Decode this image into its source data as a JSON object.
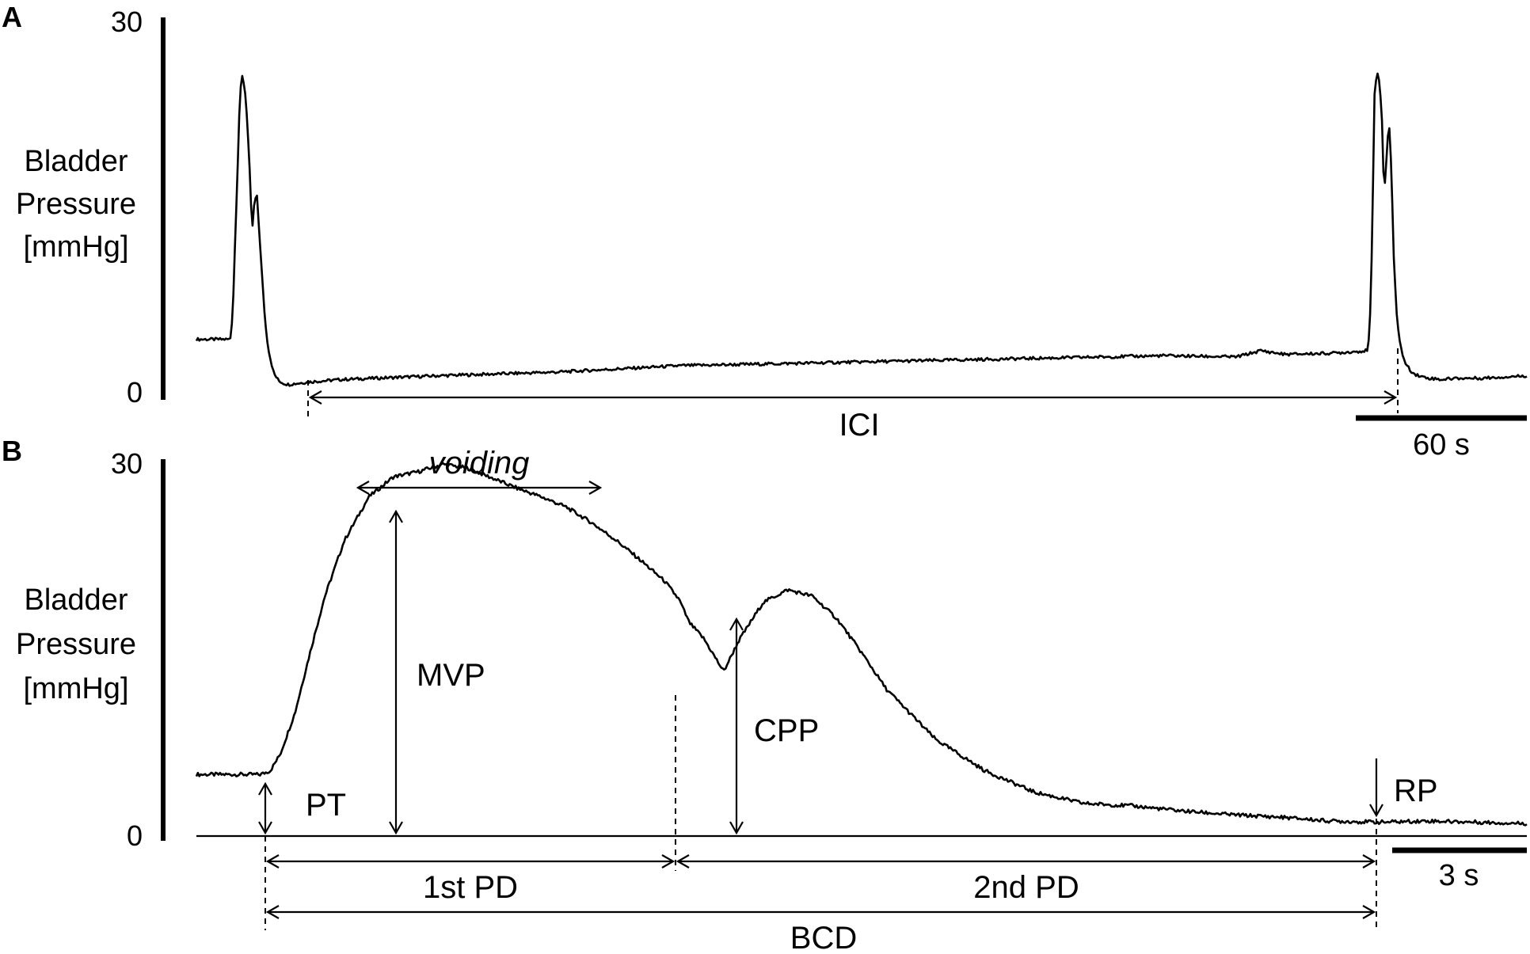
{
  "chart_data": [
    {
      "panel": "A",
      "type": "line",
      "ylabel": [
        "Bladder",
        "Pressure",
        "[mmHg]"
      ],
      "yticks": [
        "0",
        "30"
      ],
      "ylim": [
        0,
        30
      ],
      "x_unit": "s",
      "xlim": [
        0,
        550
      ],
      "scale_bar": {
        "value": 60,
        "label": "60 s"
      },
      "annotations": {
        "interval": "ICI"
      },
      "series": [
        {
          "x": [
            0,
            14,
            15,
            17,
            18,
            19,
            20,
            21,
            22,
            23,
            24,
            25,
            26,
            27,
            28,
            29,
            30,
            31,
            32,
            34,
            36,
            38,
            42,
            46,
            60,
            100,
            150,
            200,
            250,
            300,
            350,
            400,
            430,
            440,
            450,
            470,
            484,
            485,
            486,
            487,
            488,
            489,
            490,
            491,
            492,
            493,
            494,
            495,
            496,
            497,
            498,
            499,
            500,
            502,
            504,
            507,
            510,
            515,
            520,
            530,
            550
          ],
          "y": [
            4.5,
            4.5,
            6.5,
            18,
            24,
            25.5,
            24.5,
            22,
            18,
            13,
            15.5,
            16,
            13,
            10,
            7,
            4.8,
            3.5,
            2.6,
            1.8,
            1.2,
            1.0,
            0.9,
            1.0,
            1.1,
            1.3,
            1.6,
            1.9,
            2.4,
            2.6,
            2.8,
            3.0,
            3.2,
            3.1,
            3.6,
            3.3,
            3.4,
            3.6,
            4.8,
            12,
            24,
            25.8,
            25.2,
            22.5,
            16,
            19,
            22,
            18,
            11,
            7,
            5,
            3.8,
            3.0,
            2.5,
            2.0,
            1.7,
            1.5,
            1.4,
            1.3,
            1.4,
            1.4,
            1.6
          ]
        }
      ]
    },
    {
      "panel": "B",
      "type": "line",
      "ylabel": [
        "Bladder",
        "Pressure",
        "[mmHg]"
      ],
      "yticks": [
        "0",
        "30"
      ],
      "ylim": [
        0,
        30
      ],
      "x_unit": "s",
      "xlim": [
        0,
        27
      ],
      "scale_bar": {
        "value": 3,
        "label": "3 s"
      },
      "annotations": {
        "voiding": "voiding",
        "MVP": "MVP",
        "CPP": "CPP",
        "PT": "PT",
        "RP": "RP",
        "first_PD": "1st PD",
        "second_PD": "2nd PD",
        "BCD": "BCD"
      },
      "series": [
        {
          "x": [
            0,
            0.5,
            1.0,
            1.3,
            1.5,
            1.7,
            2.0,
            2.3,
            2.6,
            3.0,
            3.5,
            4.0,
            4.5,
            5.0,
            5.5,
            6.0,
            6.5,
            7.0,
            7.5,
            8.0,
            8.5,
            9.0,
            9.5,
            9.8,
            10.0,
            10.3,
            10.7,
            11.0,
            11.5,
            12.0,
            12.5,
            13.0,
            13.5,
            14.0,
            15.0,
            16.0,
            17.0,
            18.0,
            19.0,
            20.0,
            21.0,
            22.0,
            23.0,
            24.0,
            25.0,
            26.0,
            27.0
          ],
          "y": [
            4.9,
            4.9,
            4.9,
            4.9,
            5.2,
            6.5,
            9.8,
            14.5,
            19.0,
            23.5,
            27.0,
            28.6,
            29.0,
            29.6,
            29.3,
            28.5,
            27.7,
            27.0,
            26.2,
            25.0,
            23.6,
            22.0,
            20.3,
            18.8,
            17.0,
            15.7,
            13.1,
            15.5,
            18.6,
            19.6,
            19.1,
            17.3,
            14.6,
            11.7,
            7.7,
            5.2,
            3.5,
            2.6,
            2.4,
            2.0,
            1.7,
            1.5,
            1.2,
            1.1,
            1.2,
            1.1,
            1.0
          ]
        }
      ]
    }
  ]
}
